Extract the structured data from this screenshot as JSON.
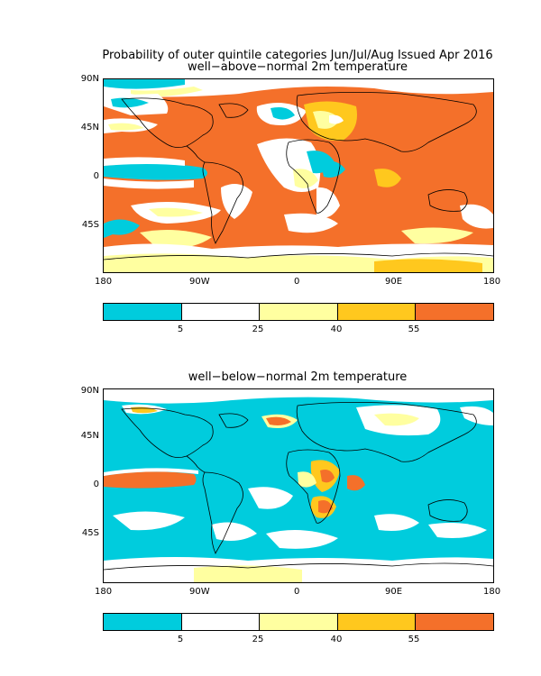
{
  "figure": {
    "title_line1": "Probability of outer quintile categories Jun/Jul/Aug Issued Apr 2016"
  },
  "panels": [
    {
      "title": "well−above−normal 2m temperature",
      "background_category": "55+",
      "dominant_color": "#f4702a"
    },
    {
      "title": "well−below−normal 2m temperature",
      "background_category": "<5",
      "dominant_color": "#00ccdd"
    }
  ],
  "axes": {
    "lat_labels": [
      "90N",
      "45N",
      "0",
      "45S"
    ],
    "lon_labels": [
      "180",
      "90W",
      "0",
      "90E",
      "180"
    ]
  },
  "colorbar": {
    "colors": [
      "#00ccdd",
      "#ffffff",
      "#ffffa0",
      "#ffc81e",
      "#f4702a"
    ],
    "labels": [
      "5",
      "25",
      "40",
      "55"
    ]
  }
}
